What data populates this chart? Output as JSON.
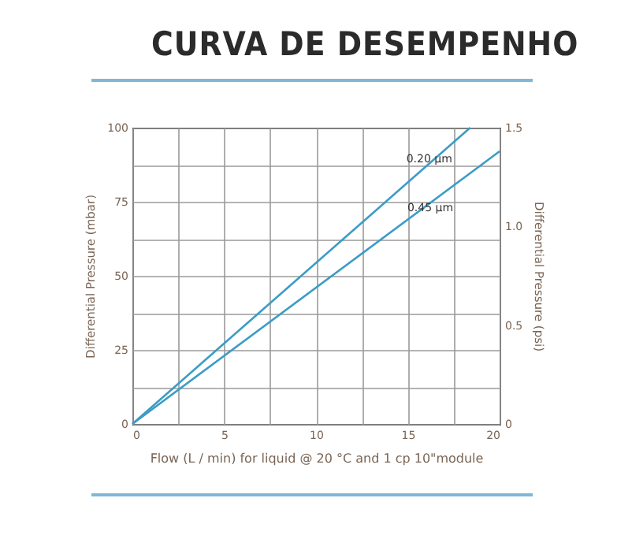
{
  "chart_data": {
    "type": "line",
    "title": "CURVA DE DESEMPENHO",
    "xlabel": "Flow (L / min) for liquid @ 20 °C and 1 cp 10\"module",
    "ylabel": "Differential Pressure (mbar)",
    "y2label": "Differential Pressure (psi)",
    "xlim": [
      0,
      20
    ],
    "xticks": [
      0,
      {
        "value": 2.5,
        "label": null
      },
      5,
      {
        "value": 7.5,
        "label": null
      },
      10,
      {
        "value": 12.5,
        "label": null
      },
      15,
      {
        "value": 17.5,
        "label": null
      },
      20
    ],
    "ylim": [
      0,
      100
    ],
    "yticks": [
      0,
      {
        "value": 12.5,
        "label": null
      },
      25,
      {
        "value": 37.5,
        "label": null
      },
      50,
      {
        "value": 62.5,
        "label": null
      },
      75,
      {
        "value": 87.5,
        "label": null
      },
      100
    ],
    "y2lim": [
      0,
      1.5
    ],
    "y2ticks": [
      0,
      0.5,
      {
        "value": 1,
        "label": "1.0"
      },
      1.5
    ],
    "grid": true,
    "series": [
      {
        "name": "0.20 µm",
        "color": "#3b9cc6",
        "x": [
          0,
          18.4
        ],
        "values": [
          0,
          100
        ]
      },
      {
        "name": "0.45 µm",
        "color": "#3b9cc6",
        "x": [
          0,
          20
        ],
        "values": [
          0,
          92
        ]
      }
    ]
  }
}
